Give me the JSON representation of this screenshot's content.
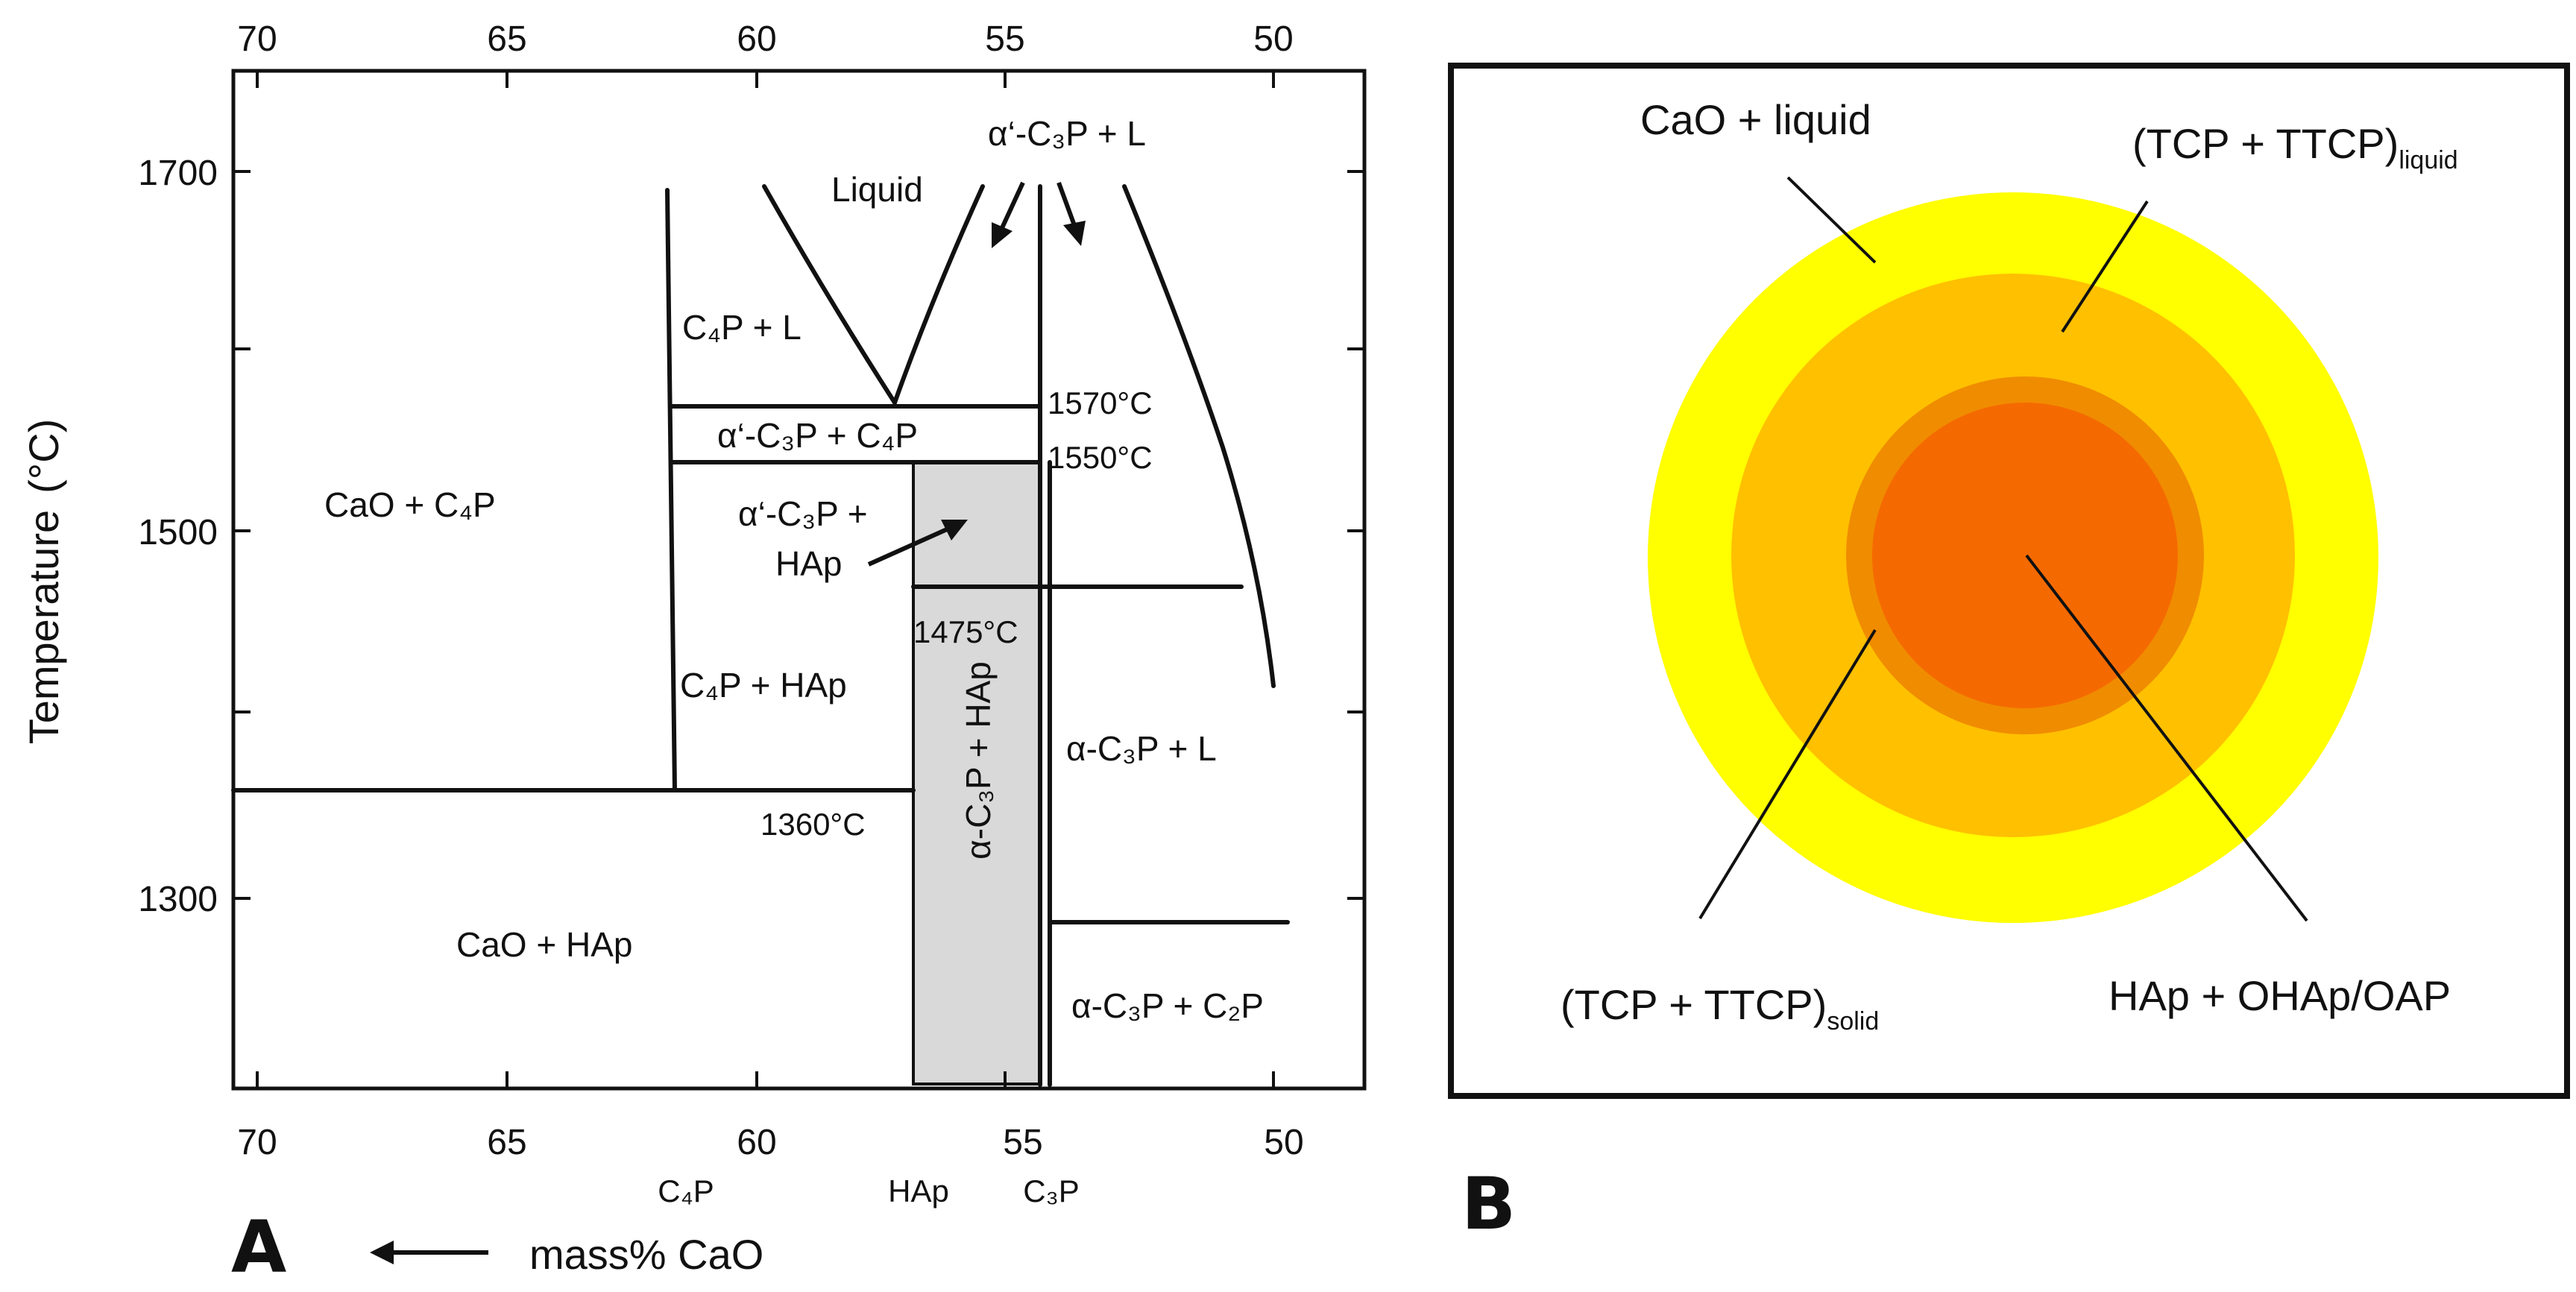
{
  "panel_a": {
    "label": "A",
    "y_axis_label": "Temperature",
    "y_axis_unit": "(°C)",
    "x_axis_label": "mass% CaO",
    "x_ticks": [
      "70",
      "65",
      "60",
      "55",
      "50"
    ],
    "y_ticks": [
      "1700",
      "1500",
      "1300"
    ],
    "compounds": [
      "C₄P",
      "HAp",
      "C₃P"
    ],
    "isotherms": [
      "1570°C",
      "1550°C",
      "1475°C",
      "1360°C"
    ],
    "regions": {
      "liquid": "Liquid",
      "alpha_prime_c3p_l": "α‘-C₃P + L",
      "c4p_l": "C₄P + L",
      "alpha_prime_c3p_c4p": "α‘-C₃P + C₄P",
      "cao_c4p": "CaO + C₄P",
      "alpha_prime_c3p_hap_1": "α‘-C₃P +",
      "alpha_prime_c3p_hap_2": "HAp",
      "c4p_hap": "C₄P + HAp",
      "alpha_c3p_l": "α-C₃P + L",
      "cao_hap": "CaO + HAp",
      "alpha_c3p_hap": "α-C₃P + HAp",
      "alpha_c3p_c2p": "α-C₃P + C₂P"
    }
  },
  "panel_b": {
    "label": "B",
    "labels": {
      "cao_liquid": "CaO + liquid",
      "tcp_ttcp_liquid": "(TCP + TTCP)",
      "tcp_ttcp_liquid_sub": "liquid",
      "tcp_ttcp_solid": "(TCP + TTCP)",
      "tcp_ttcp_solid_sub": "solid",
      "hap_ohap": "HAp + OHAp/OAP"
    },
    "colors": {
      "outer": "#ffff00",
      "middle": "#ffc000",
      "ring": "#f08c00",
      "core": "#f56a00"
    }
  }
}
